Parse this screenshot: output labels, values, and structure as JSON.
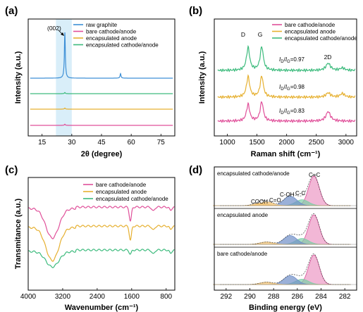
{
  "colors": {
    "blue": "#3d8fd6",
    "pink": "#e0509a",
    "orange": "#e6b030",
    "green": "#3dbb7d",
    "highlight": "#d9eef9",
    "d_blue": "#6f8fc8",
    "d_green": "#7ccfa6",
    "d_red": "#e06666",
    "d_orange": "#f0c070",
    "d_envelope": "#7fa6dc"
  },
  "panels": {
    "a": {
      "label": "(a)",
      "annotation": "(002)",
      "chart_data": {
        "type": "line",
        "xlabel": "2θ (degree)",
        "ylabel": "Intensity (a.u.)",
        "xlim": [
          8,
          82
        ],
        "xticks": [
          "15",
          "30",
          "45",
          "60",
          "75"
        ],
        "highlight_range": [
          22,
          30
        ],
        "legend_position": "top-right",
        "series": [
          {
            "name": "raw graphite",
            "color": "blue",
            "peaks": [
              [
                26.5,
                1.0
              ],
              [
                54.6,
                0.1
              ]
            ]
          },
          {
            "name": "bare cathode/anode",
            "color": "pink",
            "peaks": [
              [
                26.5,
                0.1
              ]
            ]
          },
          {
            "name": "encapsulated anode",
            "color": "orange",
            "peaks": [
              [
                26.5,
                0.1
              ]
            ]
          },
          {
            "name": "encapsulated cathode/anode",
            "color": "green",
            "peaks": [
              [
                26.5,
                0.1
              ]
            ]
          }
        ]
      }
    },
    "b": {
      "label": "(b)",
      "peak_labels": [
        "D",
        "G",
        "2D"
      ],
      "chart_data": {
        "type": "line",
        "xlabel": "Raman shift (cm⁻¹)",
        "ylabel": "Intensity (a.u.)",
        "xlim": [
          780,
          3180
        ],
        "xticks": [
          "1000",
          "1500",
          "2000",
          "2500",
          "3000"
        ],
        "legend_position": "top-right",
        "series": [
          {
            "name": "bare cathode/anode",
            "color": "pink",
            "ratio": "0.83",
            "peaks": [
              [
                1350,
                0.7
              ],
              [
                1580,
                0.8
              ],
              [
                2700,
                0.4
              ]
            ]
          },
          {
            "name": "encapsulated anode",
            "color": "orange",
            "ratio": "0.98",
            "peaks": [
              [
                1350,
                0.85
              ],
              [
                1580,
                0.87
              ],
              [
                2700,
                0.18
              ],
              [
                2940,
                0.15
              ]
            ]
          },
          {
            "name": "encapsulated cathode/anode",
            "color": "green",
            "ratio": "0.97",
            "peaks": [
              [
                1350,
                0.95
              ],
              [
                1580,
                0.98
              ],
              [
                2700,
                0.3
              ],
              [
                2940,
                0.1
              ]
            ]
          }
        ]
      }
    },
    "c": {
      "label": "(c)",
      "chart_data": {
        "type": "line",
        "xlabel": "Wavenumber (cm⁻¹)",
        "ylabel": "Transmitance (a.u.)",
        "xlim": [
          4000,
          600
        ],
        "xticks": [
          "4000",
          "3200",
          "2400",
          "1600",
          "800"
        ],
        "legend_position": "top-right",
        "series": [
          {
            "name": "bare cathode/anode",
            "color": "pink",
            "dips": [
              [
                3440,
                1.0
              ],
              [
                1630,
                0.6
              ],
              [
                1100,
                0.2
              ]
            ]
          },
          {
            "name": "encapsulated anode",
            "color": "orange",
            "dips": [
              [
                3440,
                1.0
              ],
              [
                1630,
                0.6
              ],
              [
                1100,
                0.2
              ]
            ]
          },
          {
            "name": "encapsulated cathode/anode",
            "color": "green",
            "dips": [
              [
                3440,
                1.0
              ],
              [
                1630,
                0.6
              ],
              [
                1100,
                0.2
              ]
            ]
          }
        ]
      }
    },
    "d": {
      "label": "(d)",
      "peak_labels": [
        "COOH",
        "C=O",
        "C-OH",
        "C-C",
        "C=C"
      ],
      "chart_data": {
        "type": "line",
        "xlabel": "Binding energy (eV)",
        "xlim": [
          293,
          281
        ],
        "xticks": [
          "292",
          "290",
          "288",
          "286",
          "284",
          "282"
        ],
        "subplots": [
          {
            "name": "encapsulated cathode/anode",
            "components": [
              [
                284.6,
                1.0
              ],
              [
                285.6,
                0.2
              ],
              [
                286.6,
                0.32
              ],
              [
                288.6,
                0.12
              ],
              [
                289.1,
                0.08
              ]
            ]
          },
          {
            "name": "encapsulated anode",
            "components": [
              [
                284.6,
                1.0
              ],
              [
                285.6,
                0.2
              ],
              [
                286.6,
                0.3
              ],
              [
                288.6,
                0.08
              ]
            ]
          },
          {
            "name": "bare cathode/anode",
            "components": [
              [
                284.6,
                1.0
              ],
              [
                285.6,
                0.18
              ],
              [
                286.6,
                0.3
              ],
              [
                288.6,
                0.08
              ]
            ]
          }
        ]
      }
    }
  }
}
